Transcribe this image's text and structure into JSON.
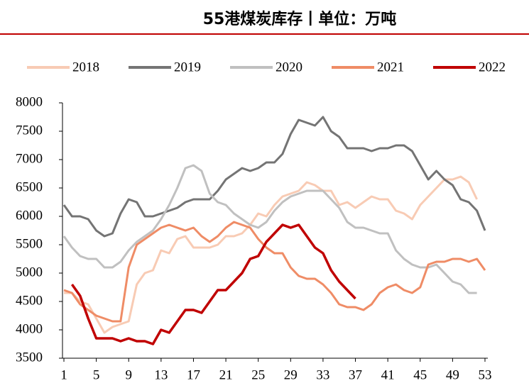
{
  "chart_data": {
    "type": "line",
    "title": "55港煤炭库存丨单位：万吨",
    "x": [
      1,
      2,
      3,
      4,
      5,
      6,
      7,
      8,
      9,
      10,
      11,
      12,
      13,
      14,
      15,
      16,
      17,
      18,
      19,
      20,
      21,
      22,
      23,
      24,
      25,
      26,
      27,
      28,
      29,
      30,
      31,
      32,
      33,
      34,
      35,
      36,
      37,
      38,
      39,
      40,
      41,
      42,
      43,
      44,
      45,
      46,
      47,
      48,
      49,
      50,
      51,
      52,
      53
    ],
    "xlim": [
      1,
      53
    ],
    "xticks": [
      1,
      5,
      9,
      13,
      17,
      21,
      25,
      29,
      33,
      37,
      41,
      45,
      49,
      53
    ],
    "ylim": [
      3500,
      8000
    ],
    "yticks": [
      3500,
      4000,
      4500,
      5000,
      5500,
      6000,
      6500,
      7000,
      7500,
      8000
    ],
    "series": [
      {
        "name": "2018",
        "color": "#f8cbb4",
        "values": [
          4650,
          4650,
          4500,
          4450,
          4200,
          3950,
          4050,
          4100,
          4150,
          4800,
          5000,
          5050,
          5400,
          5350,
          5600,
          5650,
          5450,
          5450,
          5450,
          5500,
          5650,
          5650,
          5700,
          5850,
          6050,
          6000,
          6200,
          6350,
          6400,
          6450,
          6600,
          6550,
          6450,
          6450,
          6200,
          6250,
          6150,
          6250,
          6350,
          6300,
          6300,
          6100,
          6050,
          5950,
          6200,
          6350,
          6500,
          6650,
          6650,
          6700,
          6600,
          6300,
          null
        ]
      },
      {
        "name": "2019",
        "color": "#747474",
        "values": [
          6200,
          6000,
          6000,
          5950,
          5750,
          5650,
          5700,
          6050,
          6300,
          6250,
          6000,
          6000,
          6050,
          6100,
          6150,
          6250,
          6300,
          6300,
          6300,
          6450,
          6650,
          6750,
          6850,
          6800,
          6850,
          6950,
          6950,
          7100,
          7450,
          7700,
          7650,
          7600,
          7750,
          7500,
          7400,
          7200,
          7200,
          7200,
          7150,
          7200,
          7200,
          7250,
          7250,
          7150,
          6900,
          6650,
          6800,
          6650,
          6550,
          6300,
          6250,
          6100,
          5750
        ]
      },
      {
        "name": "2020",
        "color": "#c0c0c0",
        "values": [
          5650,
          5450,
          5300,
          5250,
          5250,
          5100,
          5100,
          5200,
          5400,
          5550,
          5650,
          5750,
          5950,
          6200,
          6500,
          6850,
          6900,
          6800,
          6400,
          6250,
          6200,
          6050,
          5950,
          5850,
          5800,
          5900,
          6100,
          6250,
          6350,
          6400,
          6450,
          6450,
          6450,
          6300,
          6150,
          5900,
          5800,
          5800,
          5750,
          5700,
          5700,
          5400,
          5250,
          5150,
          5100,
          5100,
          5150,
          5000,
          4850,
          4800,
          4650,
          4650,
          null
        ]
      },
      {
        "name": "2021",
        "color": "#ef8c66",
        "values": [
          4700,
          4650,
          4450,
          4350,
          4250,
          4200,
          4150,
          4150,
          5100,
          5500,
          5600,
          5700,
          5800,
          5850,
          5800,
          5750,
          5800,
          5650,
          5550,
          5650,
          5800,
          5900,
          5850,
          5800,
          5600,
          5450,
          5350,
          5350,
          5100,
          4950,
          4900,
          4900,
          4800,
          4650,
          4450,
          4400,
          4400,
          4350,
          4450,
          4650,
          4750,
          4800,
          4700,
          4650,
          4750,
          5150,
          5200,
          5200,
          5250,
          5250,
          5200,
          5250,
          5050
        ]
      },
      {
        "name": "2022",
        "color": "#c00000",
        "values": [
          null,
          4800,
          4600,
          4200,
          3850,
          3850,
          3850,
          3800,
          3850,
          3800,
          3800,
          3750,
          4000,
          3950,
          4150,
          4350,
          4350,
          4300,
          4500,
          4700,
          4700,
          4850,
          5000,
          5250,
          5300,
          5550,
          5700,
          5850,
          5800,
          5850,
          5650,
          5450,
          5350,
          5050,
          4850,
          4700,
          4550,
          null,
          null,
          null,
          null,
          null,
          null,
          null,
          null,
          null,
          null,
          null,
          null,
          null,
          null,
          null,
          null
        ]
      }
    ]
  }
}
